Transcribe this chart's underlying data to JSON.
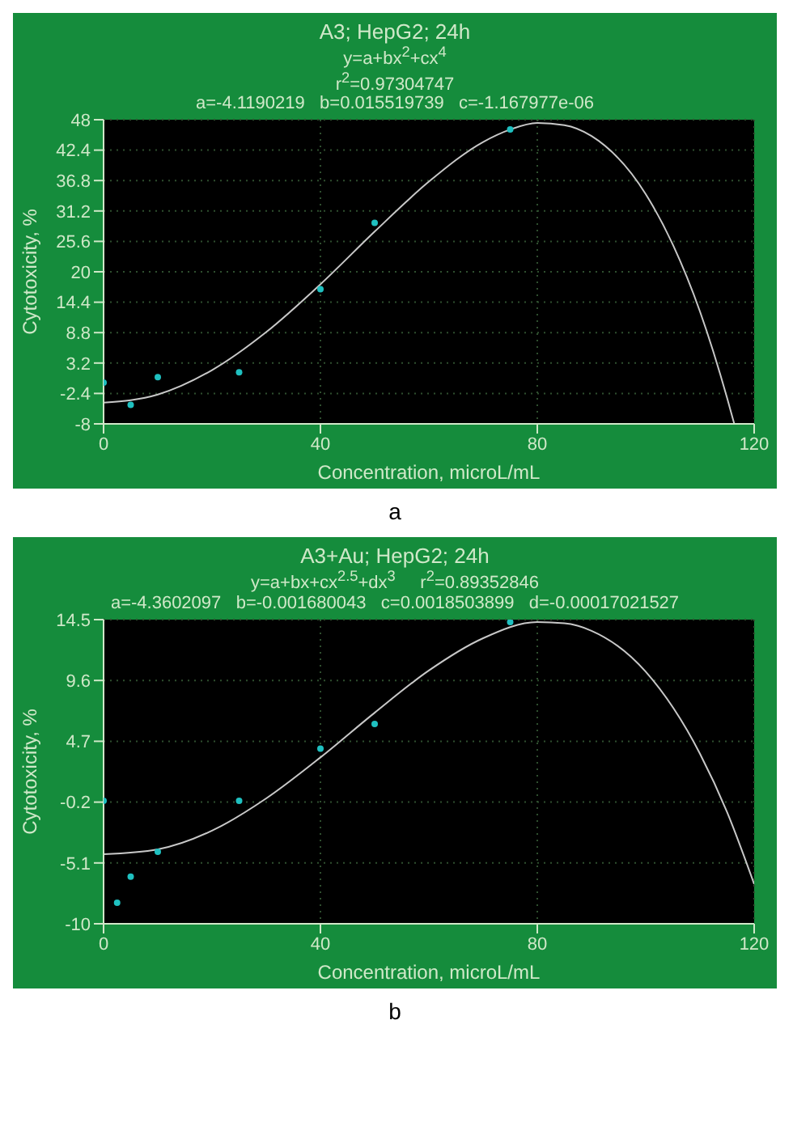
{
  "chart_data": [
    {
      "type": "scatter",
      "title": "A3; HepG2; 24h",
      "subtitle": "y=a+bx$^{2}$+cx$^{4}$",
      "xlabel": "Concentration, microL/mL",
      "ylabel": "Cytotoxicity, %",
      "annotations": [
        "r$^{2}$=0.97304747",
        "a=-4.1190219   b=0.015519739   c=-1.167977e-06",
        "a"
      ],
      "xlim": [
        0,
        120
      ],
      "xticks": [
        0,
        40,
        80,
        120
      ],
      "ylim": [
        -8,
        48
      ],
      "yticks": [
        -8,
        -2.4,
        3.2,
        8.8,
        14.4,
        20,
        25.6,
        31.2,
        36.8,
        42.4,
        48
      ],
      "grid": true,
      "marker": "circle",
      "series": [
        {
          "color": "#1fc0c0",
          "x": [
            0,
            5,
            10,
            25,
            40,
            50,
            75
          ],
          "values": [
            -0.4,
            -4.5,
            0.6,
            1.5,
            16.8,
            29,
            46.2
          ]
        },
        {
          "type": "line",
          "color": "#c8c8c8",
          "marker": "none",
          "x": [
            0,
            10,
            20,
            30,
            40,
            50,
            60,
            70,
            75,
            80,
            85,
            90,
            100,
            105,
            110,
            115,
            116.3
          ],
          "values": [
            -4.1,
            -2.6,
            1.9,
            8.9,
            17.7,
            27.4,
            36.6,
            43.9,
            46.2,
            47.4,
            47.0,
            45.0,
            34.3,
            25.0,
            12.7,
            -3.2,
            -7.9
          ]
        }
      ]
    },
    {
      "type": "scatter",
      "title": "A3+Au; HepG2; 24h",
      "subtitle": "y=a+bx+cx$^{2.5}$+dx$^{3}$     r$^{2}$=0.89352846",
      "xlabel": "Concentration, microL/mL",
      "ylabel": "Cytotoxicity, %",
      "annotations": [
        "a=-4.3602097   b=-0.001680043   c=0.0018503899   d=-0.00017021527",
        "b"
      ],
      "xlim": [
        0,
        120
      ],
      "xticks": [
        0,
        40,
        80,
        120
      ],
      "ylim": [
        -10,
        14.5
      ],
      "yticks": [
        -10,
        -5.1,
        -0.2,
        4.7,
        9.6,
        14.5
      ],
      "grid": true,
      "marker": "circle",
      "series": [
        {
          "color": "#1fc0c0",
          "x": [
            0,
            2.5,
            5,
            10,
            25,
            40,
            50,
            75
          ],
          "values": [
            -0.1,
            -8.3,
            -6.2,
            -4.2,
            -0.1,
            4.1,
            6.1,
            14.3
          ]
        },
        {
          "type": "line",
          "color": "#c8c8c8",
          "marker": "none",
          "x": [
            0,
            10,
            20,
            30,
            40,
            50,
            60,
            70,
            80,
            85,
            90,
            100,
            110,
            115,
            120
          ],
          "values": [
            -4.4,
            -4.0,
            -2.5,
            0.1,
            3.4,
            7.0,
            10.4,
            13.0,
            14.3,
            14.2,
            13.6,
            10.3,
            3.7,
            -1.0,
            -6.8
          ]
        }
      ]
    }
  ]
}
